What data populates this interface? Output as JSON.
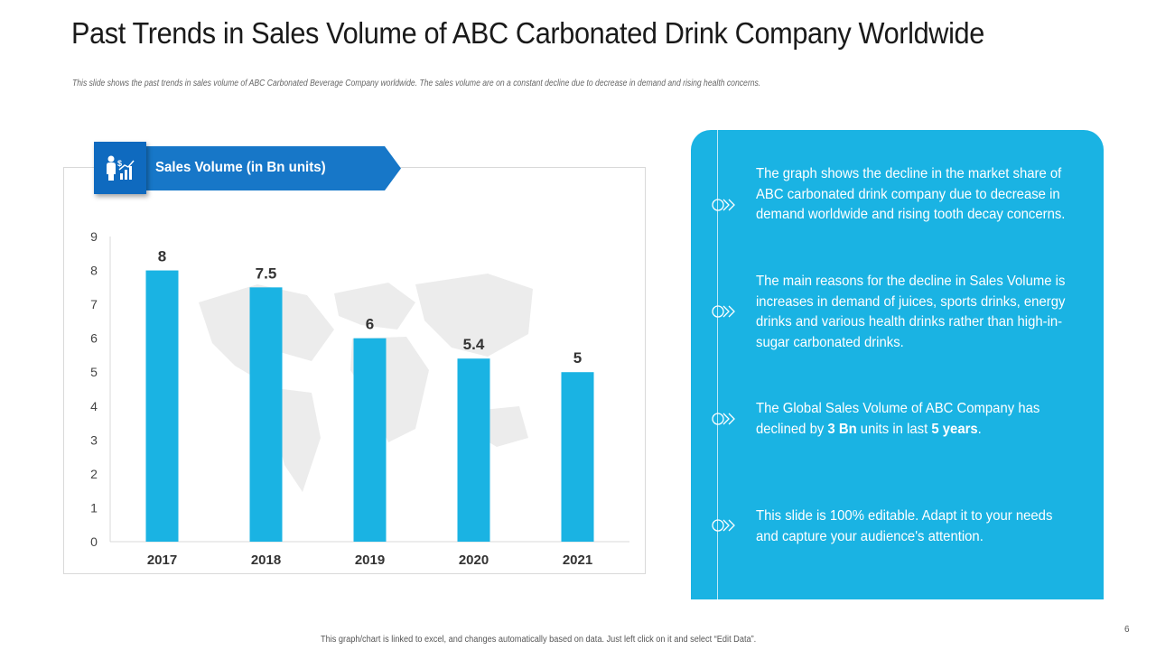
{
  "slide": {
    "title": "Past Trends in Sales Volume of ABC Carbonated Drink Company Worldwide",
    "subtitle": "This slide shows the past trends in sales volume of ABC Carbonated  Beverage  Company worldwide.  The sales volume are on a constant decline  due to decrease in demand  and rising health concerns.",
    "footer": "This graph/chart is linked to excel, and changes automatically  based on data.  Just left click  on it and select  “Edit Data”.",
    "page_number": "6"
  },
  "chart_banner": {
    "label": "Sales Volume (in Bn units)",
    "icon": "presenter-chart-icon"
  },
  "chart_data": {
    "type": "bar",
    "title": "Sales Volume (in Bn units)",
    "categories": [
      "2017",
      "2018",
      "2019",
      "2020",
      "2021"
    ],
    "values": [
      8,
      7.5,
      6,
      5.4,
      5
    ],
    "value_labels": [
      "8",
      "7.5",
      "6",
      "5.4",
      "5"
    ],
    "ylim": [
      0,
      9
    ],
    "yticks": [
      "0",
      "1",
      "2",
      "3",
      "4",
      "5",
      "6",
      "7",
      "8",
      "9"
    ],
    "xlabel": "",
    "ylabel": "",
    "grid": false,
    "bar_color": "#1ab3e3"
  },
  "panel": {
    "items": [
      {
        "text": "The graph shows the decline in the market share of ABC carbonated drink company due to decrease in demand worldwide and rising tooth decay concerns."
      },
      {
        "text": "The main reasons for the decline in Sales Volume is increases in demand of juices, sports drinks, energy drinks and various health drinks rather than high-in-sugar carbonated drinks."
      },
      {
        "text_before": "The Global Sales Volume of ABC Company has declined by ",
        "bold1": "3 Bn",
        "text_mid": " units in last ",
        "bold2": "5 years",
        "text_after": "."
      },
      {
        "text": "This slide is 100% editable. Adapt it to your needs and capture your audience's attention."
      }
    ]
  },
  "colors": {
    "accent": "#1ab3e3",
    "banner": "#1777c8"
  }
}
